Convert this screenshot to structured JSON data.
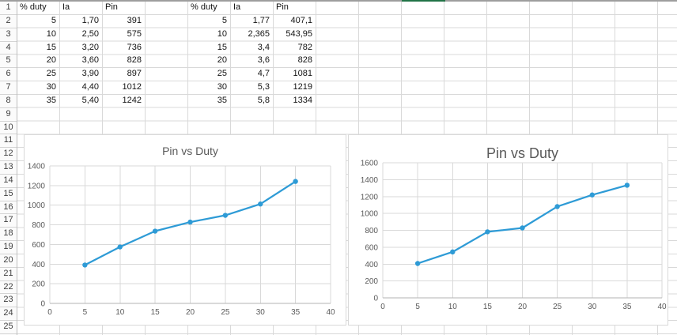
{
  "app": {
    "kind": "spreadsheet-worksheet"
  },
  "colors": {
    "selection_green": "#217346",
    "top_border_gray": "#9E9E9E",
    "series_line_blue": "#2E9BD6",
    "chart_gridline": "#D9D9D9",
    "chart_axis_line": "#B3B3B3",
    "axis_text_gray": "#595959",
    "chart_title_gray": "#595959",
    "cell_gridline": "#D9D9D9"
  },
  "sheet": {
    "visible_rows": 25,
    "selected_column_grid_index": 9,
    "tables": [
      {
        "name": "table-1",
        "start_col": 0,
        "headers": [
          "% duty",
          "Ia",
          "Pin"
        ],
        "rows": [
          [
            "5",
            "1,70",
            "391"
          ],
          [
            "10",
            "2,50",
            "575"
          ],
          [
            "15",
            "3,20",
            "736"
          ],
          [
            "20",
            "3,60",
            "828"
          ],
          [
            "25",
            "3,90",
            "897"
          ],
          [
            "30",
            "4,40",
            "1012"
          ],
          [
            "35",
            "5,40",
            "1242"
          ]
        ]
      },
      {
        "name": "table-2",
        "start_col": 4,
        "headers": [
          "% duty",
          "Ia",
          "Pin"
        ],
        "rows": [
          [
            "5",
            "1,77",
            "407,1"
          ],
          [
            "10",
            "2,365",
            "543,95"
          ],
          [
            "15",
            "3,4",
            "782"
          ],
          [
            "20",
            "3,6",
            "828"
          ],
          [
            "25",
            "4,7",
            "1081"
          ],
          [
            "30",
            "5,3",
            "1219"
          ],
          [
            "35",
            "5,8",
            "1334"
          ]
        ]
      }
    ]
  },
  "chart_data": [
    {
      "type": "line",
      "title": "Pin vs Duty",
      "xlabel": "",
      "ylabel": "",
      "x": [
        5,
        10,
        15,
        20,
        25,
        30,
        35
      ],
      "series": [
        {
          "name": "Pin",
          "values": [
            391,
            575,
            736,
            828,
            897,
            1012,
            1242
          ]
        }
      ],
      "xlim": [
        0,
        40
      ],
      "ylim": [
        0,
        1400
      ],
      "x_ticks": [
        0,
        5,
        10,
        15,
        20,
        25,
        30,
        35,
        40
      ],
      "y_ticks": [
        0,
        200,
        400,
        600,
        800,
        1000,
        1200,
        1400
      ],
      "grid": true,
      "legend": "none",
      "marker": "circle"
    },
    {
      "type": "line",
      "title": "Pin vs Duty",
      "xlabel": "",
      "ylabel": "",
      "x": [
        5,
        10,
        15,
        20,
        25,
        30,
        35
      ],
      "series": [
        {
          "name": "Pin",
          "values": [
            407.1,
            543.95,
            782,
            828,
            1081,
            1219,
            1334
          ]
        }
      ],
      "xlim": [
        0,
        40
      ],
      "ylim": [
        0,
        1600
      ],
      "x_ticks": [
        0,
        5,
        10,
        15,
        20,
        25,
        30,
        35,
        40
      ],
      "y_ticks": [
        0,
        200,
        400,
        600,
        800,
        1000,
        1200,
        1400,
        1600
      ],
      "grid": true,
      "legend": "none",
      "marker": "circle"
    }
  ]
}
